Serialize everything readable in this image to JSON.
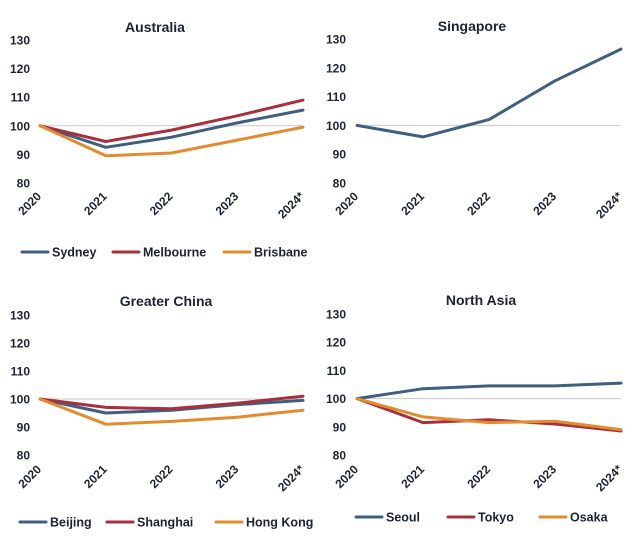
{
  "chart_data": [
    {
      "type": "line",
      "title": "Australia",
      "x": [
        "2020",
        "2021",
        "2022",
        "2023",
        "2024*"
      ],
      "ylim": [
        80,
        130
      ],
      "yticks": [
        80,
        90,
        100,
        110,
        120,
        130
      ],
      "grid": false,
      "legend": "bottom",
      "series": [
        {
          "name": "Sydney",
          "color": "#3e5f80",
          "values": [
            100,
            92.5,
            96,
            101,
            105.5
          ]
        },
        {
          "name": "Melbourne",
          "color": "#a8303e",
          "values": [
            100,
            94.5,
            98.5,
            103.5,
            109
          ]
        },
        {
          "name": "Brisbane",
          "color": "#e28c2e",
          "values": [
            100,
            89.5,
            90.5,
            95,
            99.5
          ]
        }
      ]
    },
    {
      "type": "line",
      "title": "Singapore",
      "x": [
        "2020",
        "2021",
        "2022",
        "2023",
        "2024*"
      ],
      "ylim": [
        80,
        130
      ],
      "yticks": [
        80,
        90,
        100,
        110,
        120,
        130
      ],
      "grid": false,
      "legend": "none",
      "series": [
        {
          "color": "#3e5f80",
          "values": [
            100,
            96,
            102,
            115.5,
            126.5
          ]
        }
      ]
    },
    {
      "type": "line",
      "title": "Greater China",
      "x": [
        "2020",
        "2021",
        "2022",
        "2023",
        "2024*"
      ],
      "ylim": [
        80,
        130
      ],
      "yticks": [
        80,
        90,
        100,
        110,
        120,
        130
      ],
      "grid": false,
      "legend": "bottom",
      "series": [
        {
          "name": "Beijing",
          "color": "#3e5f80",
          "values": [
            100,
            95,
            96,
            98,
            99.5
          ]
        },
        {
          "name": "Shanghai",
          "color": "#a8303e",
          "values": [
            100,
            97,
            96.5,
            98.5,
            101
          ]
        },
        {
          "name": "Hong Kong",
          "color": "#e28c2e",
          "values": [
            100,
            91,
            92,
            93.5,
            96
          ]
        }
      ]
    },
    {
      "type": "line",
      "title": "North Asia",
      "x": [
        "2020",
        "2021",
        "2022",
        "2023",
        "2024*"
      ],
      "ylim": [
        80,
        130
      ],
      "yticks": [
        80,
        90,
        100,
        110,
        120,
        130
      ],
      "grid": false,
      "legend": "bottom",
      "series": [
        {
          "name": "Seoul",
          "color": "#3e5f80",
          "values": [
            100,
            103.5,
            104.5,
            104.5,
            105.5
          ]
        },
        {
          "name": "Tokyo",
          "color": "#a8303e",
          "values": [
            100,
            91.5,
            92.5,
            91,
            88.5
          ]
        },
        {
          "name": "Osaka",
          "color": "#e28c2e",
          "values": [
            100,
            93.5,
            91.5,
            92,
            89
          ]
        }
      ]
    }
  ]
}
